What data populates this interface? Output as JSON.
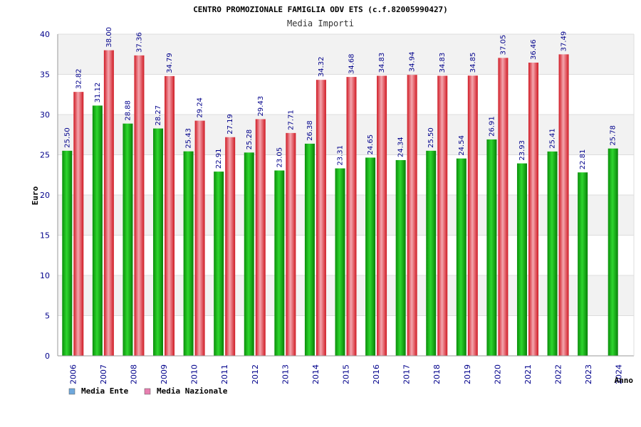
{
  "chart_data": {
    "type": "bar",
    "title": "CENTRO PROMOZIONALE FAMIGLIA ODV ETS (c.f.82005990427)",
    "subtitle": "Media Importi",
    "xlabel": "Anno",
    "ylabel": "Euro",
    "ylim": [
      0,
      40
    ],
    "yticks": [
      0,
      5,
      10,
      15,
      20,
      25,
      30,
      35,
      40
    ],
    "grid": true,
    "legend_position": "bottom-left",
    "categories": [
      "2006",
      "2007",
      "2008",
      "2009",
      "2010",
      "2011",
      "2012",
      "2013",
      "2014",
      "2015",
      "2016",
      "2017",
      "2018",
      "2019",
      "2020",
      "2021",
      "2022",
      "2023",
      "2024"
    ],
    "series": [
      {
        "name": "Media Ente",
        "legend_color": "#6fa8dc",
        "bar_color": "#1fb51f",
        "values": [
          25.5,
          31.12,
          28.88,
          28.27,
          25.43,
          22.91,
          25.28,
          23.05,
          26.38,
          23.31,
          24.65,
          24.34,
          25.5,
          24.54,
          26.91,
          23.93,
          25.41,
          22.81,
          25.78
        ],
        "labels": [
          "25.50",
          "31.12",
          "28.88",
          "28.27",
          "25.43",
          "22.91",
          "25.28",
          "23.05",
          "26.38",
          "23.31",
          "24.65",
          "24.34",
          "25.50",
          "24.54",
          "26.91",
          "23.93",
          "25.41",
          "22.81",
          "25.78"
        ]
      },
      {
        "name": "Media Nazionale",
        "legend_color": "#e87fb0",
        "bar_color": "#e8323c",
        "values": [
          32.82,
          38.0,
          37.36,
          34.79,
          29.24,
          27.19,
          29.43,
          27.71,
          34.32,
          34.68,
          34.83,
          34.94,
          34.83,
          34.85,
          37.05,
          36.46,
          37.49,
          null,
          null
        ],
        "labels": [
          "32.82",
          "38.00",
          "37.36",
          "34.79",
          "29.24",
          "27.19",
          "29.43",
          "27.71",
          "34.32",
          "34.68",
          "34.83",
          "34.94",
          "34.83",
          "34.85",
          "37.05",
          "36.46",
          "37.49",
          "",
          ""
        ]
      }
    ]
  }
}
